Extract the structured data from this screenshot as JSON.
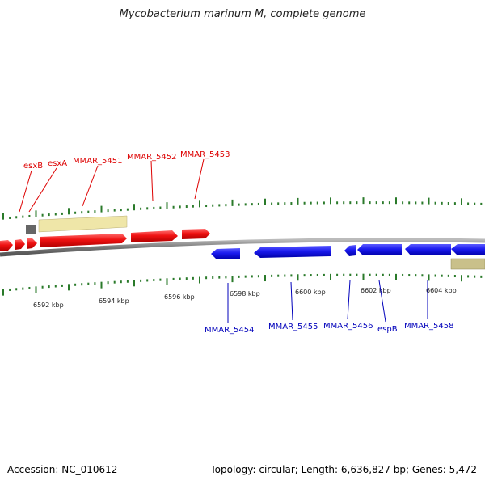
{
  "title": "Mycobacterium marinum M, complete genome",
  "footer": {
    "accession": "Accession: NC_010612",
    "info": "Topology: circular; Length: 6,636,827 bp; Genes: 5,472"
  },
  "colors": {
    "forward_gene": "#ee1111",
    "reverse_gene": "#1a1aee",
    "forward_label": "#dd0000",
    "reverse_label": "#0000bb",
    "tick": "#2a7a2a",
    "backbone": "#777777",
    "region_forward": "#efe6a8",
    "region_reverse": "#c9c08a"
  },
  "scale_labels": [
    "6592 kbp",
    "6594 kbp",
    "6596 kbp",
    "6598 kbp",
    "6600 kbp",
    "6602 kbp",
    "6604 kbp"
  ],
  "forward_genes": [
    "esxB",
    "esxA",
    "MMAR_5451",
    "MMAR_5452",
    "MMAR_5453"
  ],
  "reverse_genes": [
    "MMAR_5454",
    "MMAR_5455",
    "MMAR_5456",
    "espB",
    "MMAR_5458"
  ]
}
